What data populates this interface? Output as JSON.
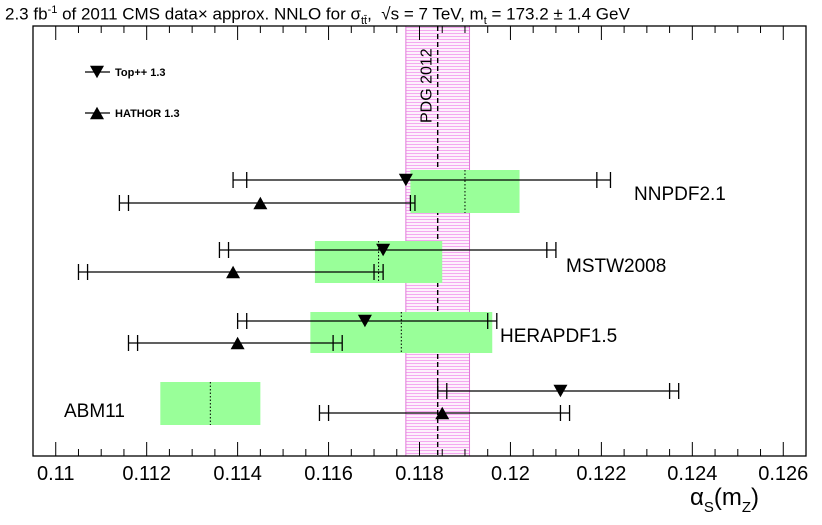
{
  "title": {
    "lumi": "2.3 fb",
    "lumi_exp": "-1",
    "data": "of 2011 CMS data",
    "times": "×",
    "approx": "approx. NNLO for σ",
    "sub_tt": "tt̄",
    "comma1": ",",
    "sqrt": "√s = 7 TeV, m",
    "sub_t": "t",
    "mass": "= 173.2 ± 1.4 GeV"
  },
  "chart_data": {
    "type": "scatter",
    "title": "2.3 fb-1 of 2011 CMS data × approx. NNLO for σtt̄, √s = 7 TeV, mt = 173.2 ± 1.4 GeV",
    "xlabel": "αS(mZ)",
    "xlabel_parts": {
      "alpha": "α",
      "sub_s": "S",
      "paren": "(m",
      "sub_z": "Z",
      "close": ")"
    },
    "xlim": [
      0.1095,
      0.1265
    ],
    "xticks": [
      0.11,
      0.112,
      0.114,
      0.116,
      0.118,
      0.12,
      0.122,
      0.124,
      0.126
    ],
    "xtick_labels": [
      "0.11",
      "0.112",
      "0.114",
      "0.116",
      "0.118",
      "0.12",
      "0.122",
      "0.124",
      "0.126"
    ],
    "pdg_band": {
      "label": "PDG 2012",
      "central": 0.1184,
      "low": 0.1177,
      "high": 0.1191
    },
    "legend": [
      {
        "label": "Top++ 1.3",
        "marker": "triangle-down"
      },
      {
        "label": "HATHOR 1.3",
        "marker": "triangle-up"
      }
    ],
    "pdfs": [
      {
        "name": "NNPDF2.1",
        "pdf_band": {
          "central": 0.119,
          "low": 0.1178,
          "high": 0.1202
        },
        "toppp": {
          "value": 0.1177,
          "inner": [
            0.1142,
            0.1219
          ],
          "outer": [
            0.1139,
            0.1222
          ]
        },
        "hathor": {
          "value": 0.1145,
          "inner": [
            0.1116,
            0.1178
          ],
          "outer": [
            0.1114,
            0.1179
          ]
        }
      },
      {
        "name": "MSTW2008",
        "pdf_band": {
          "central": 0.1171,
          "low": 0.1157,
          "high": 0.1185
        },
        "toppp": {
          "value": 0.1172,
          "inner": [
            0.1138,
            0.1208
          ],
          "outer": [
            0.1136,
            0.121
          ]
        },
        "hathor": {
          "value": 0.1139,
          "inner": [
            0.1107,
            0.117
          ],
          "outer": [
            0.1105,
            0.1172
          ]
        }
      },
      {
        "name": "HERAPDF1.5",
        "pdf_band": {
          "central": 0.1176,
          "low": 0.1156,
          "high": 0.1196
        },
        "toppp": {
          "value": 0.1168,
          "inner": [
            0.1142,
            0.1195
          ],
          "outer": [
            0.114,
            0.1197
          ]
        },
        "hathor": {
          "value": 0.114,
          "inner": [
            0.1118,
            0.1161
          ],
          "outer": [
            0.1116,
            0.1163
          ]
        }
      },
      {
        "name": "ABM11",
        "pdf_band": {
          "central": 0.1134,
          "low": 0.1123,
          "high": 0.1145
        },
        "toppp": {
          "value": 0.1211,
          "inner": [
            0.1186,
            0.1235
          ],
          "outer": [
            0.1184,
            0.1237
          ]
        },
        "hathor": {
          "value": 0.1185,
          "inner": [
            0.116,
            0.1211
          ],
          "outer": [
            0.1158,
            0.1213
          ]
        }
      }
    ]
  }
}
